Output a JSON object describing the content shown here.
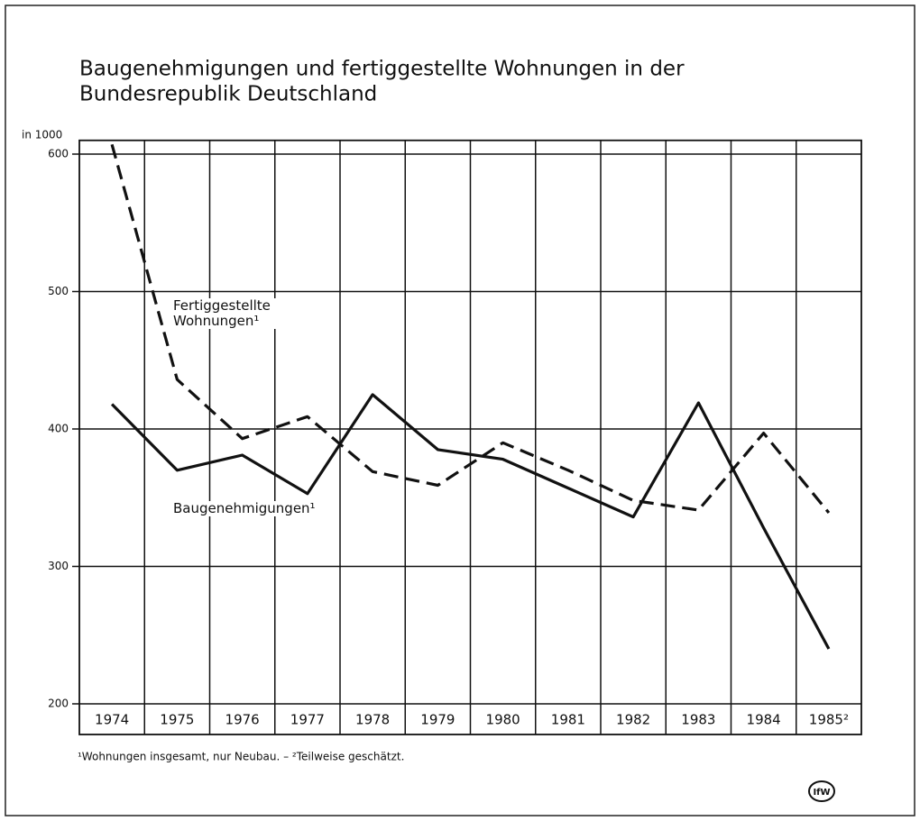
{
  "chart_data": {
    "type": "line",
    "title_lines": [
      "Baugenehmigungen und fertiggestellte Wohnungen in der",
      "Bundesrepublik Deutschland"
    ],
    "y_unit_label": "in 1000",
    "categories": [
      "1974",
      "1975",
      "1976",
      "1977",
      "1978",
      "1979",
      "1980",
      "1981",
      "1982",
      "1983",
      "1984",
      "1985²"
    ],
    "series": [
      {
        "name": "Fertiggestellte Wohnungen¹",
        "color": "#111111",
        "dash": true,
        "values": [
          607,
          436,
          393,
          409,
          369,
          359,
          390,
          370,
          348,
          341,
          397,
          339
        ]
      },
      {
        "name": "Baugenehmigungen¹",
        "color": "#111111",
        "dash": false,
        "values": [
          418,
          370,
          381,
          353,
          425,
          385,
          378,
          357,
          336,
          419,
          328,
          240
        ]
      }
    ],
    "ylim": [
      200,
      610
    ],
    "yticks": [
      200,
      300,
      400,
      500,
      600
    ],
    "grid": true,
    "footnote": "¹Wohnungen insgesamt, nur Neubau. – ²Teilweise geschätzt.",
    "logo": "IfW"
  }
}
